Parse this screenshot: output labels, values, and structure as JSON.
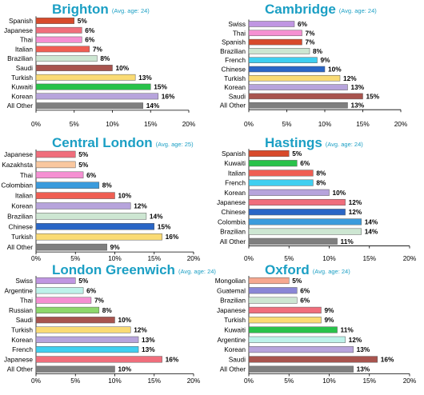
{
  "colors": {
    "Spanish": "#d84a2b",
    "Japanese": "#f06e7c",
    "Thai": "#f590d2",
    "Italian": "#ef5e53",
    "Brazilian": "#cde6d2",
    "Saudi": "#a8544e",
    "Turkish": "#fadb74",
    "Kuwaiti": "#29c24a",
    "Korean": "#b7a4dc",
    "All Other": "#7f7f7f",
    "Swiss": "#c096e2",
    "French": "#3fcff0",
    "Chinese": "#2a66c6",
    "Kazakhsta": "#f9c79f",
    "Colombian": "#3b9bdc",
    "Colombia": "#3b9bdc",
    "Argentine": "#bdf2ea",
    "Russian": "#8dd76c",
    "Mongolian": "#f6a890",
    "Guatemal": "#8a86d6"
  },
  "chart_data": [
    {
      "type": "bar",
      "title": "Brighton",
      "subtitle": "(Avg. age: 24)",
      "categories": [
        "Spanish",
        "Japanese",
        "Thai",
        "Italian",
        "Brazilian",
        "Saudi",
        "Turkish",
        "Kuwaiti",
        "Korean",
        "All Other"
      ],
      "values": [
        5,
        6,
        6,
        7,
        8,
        10,
        13,
        15,
        16,
        14
      ],
      "labels": [
        "5%",
        "6%",
        "6%",
        "7%",
        "8%",
        "10%",
        "13%",
        "15%",
        "16%",
        "14%"
      ],
      "xlim": [
        0,
        20
      ],
      "xticks": [
        "0%",
        "5%",
        "10%",
        "15%",
        "20%"
      ]
    },
    {
      "type": "bar",
      "title": "Cambridge",
      "subtitle": "(Avg. age: 24)",
      "categories": [
        "Swiss",
        "Thai",
        "Spanish",
        "Brazilian",
        "French",
        "Chinese",
        "Turkish",
        "Korean",
        "Saudi",
        "All Other"
      ],
      "values": [
        6,
        7,
        7,
        8,
        9,
        10,
        12,
        13,
        15,
        13
      ],
      "labels": [
        "6%",
        "7%",
        "7%",
        "8%",
        "9%",
        "10%",
        "12%",
        "13%",
        "15%",
        "13%"
      ],
      "xlim": [
        0,
        20
      ],
      "xticks": [
        "0%",
        "5%",
        "10%",
        "15%",
        "20%"
      ]
    },
    {
      "type": "bar",
      "title": "Central London",
      "subtitle": "(Avg. age: 25)",
      "categories": [
        "Japanese",
        "Kazakhsta",
        "Thai",
        "Colombian",
        "Italian",
        "Korean",
        "Brazilian",
        "Chinese",
        "Turkish",
        "All Other"
      ],
      "values": [
        5,
        5,
        6,
        8,
        10,
        12,
        14,
        15,
        16,
        9
      ],
      "labels": [
        "5%",
        "5%",
        "6%",
        "8%",
        "10%",
        "12%",
        "14%",
        "15%",
        "16%",
        "9%"
      ],
      "xlim": [
        0,
        20
      ],
      "xticks": [
        "0%",
        "5%",
        "10%",
        "15%",
        "20%"
      ]
    },
    {
      "type": "bar",
      "title": "Hastings",
      "subtitle": "(Avg. age: 24)",
      "categories": [
        "Spanish",
        "Kuwaiti",
        "Italian",
        "French",
        "Korean",
        "Japanese",
        "Chinese",
        "Colombia",
        "Brazilian",
        "All Other"
      ],
      "values": [
        5,
        6,
        8,
        8,
        10,
        12,
        12,
        14,
        14,
        11
      ],
      "labels": [
        "5%",
        "6%",
        "8%",
        "8%",
        "10%",
        "12%",
        "12%",
        "14%",
        "14%",
        "11%"
      ],
      "xlim": [
        0,
        20
      ],
      "xticks": [
        "0%",
        "5%",
        "10%",
        "15%",
        "20%"
      ]
    },
    {
      "type": "bar",
      "title": "London Greenwich",
      "subtitle": "(Avg. age: 24)",
      "categories": [
        "Swiss",
        "Argentine",
        "Thai",
        "Russian",
        "Saudi",
        "Turkish",
        "Korean",
        "French",
        "Japanese",
        "All Other"
      ],
      "values": [
        5,
        6,
        7,
        8,
        10,
        12,
        13,
        13,
        16,
        10
      ],
      "labels": [
        "5%",
        "6%",
        "7%",
        "8%",
        "10%",
        "12%",
        "13%",
        "13%",
        "16%",
        "10%"
      ],
      "xlim": [
        0,
        20
      ],
      "xticks": [
        "0%",
        "5%",
        "10%",
        "15%",
        "20%"
      ]
    },
    {
      "type": "bar",
      "title": "Oxford",
      "subtitle": "(Avg. age: 24)",
      "categories": [
        "Mongolian",
        "Guatemal",
        "Brazilian",
        "Japanese",
        "Turkish",
        "Kuwaiti",
        "Argentine",
        "Korean",
        "Saudi",
        "All Other"
      ],
      "values": [
        5,
        6,
        6,
        9,
        9,
        11,
        12,
        13,
        16,
        13
      ],
      "labels": [
        "5%",
        "6%",
        "6%",
        "9%",
        "9%",
        "11%",
        "12%",
        "13%",
        "16%",
        "13%"
      ],
      "xlim": [
        0,
        20
      ],
      "xticks": [
        "0%",
        "5%",
        "10%",
        "15%",
        "20%"
      ]
    }
  ]
}
